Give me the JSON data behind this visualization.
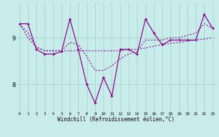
{
  "line1_x": [
    0,
    1,
    2,
    3,
    4,
    5,
    6,
    7,
    8,
    9,
    10,
    11,
    12,
    13,
    14,
    15,
    16,
    17,
    18,
    19,
    20,
    21,
    22,
    23
  ],
  "line1_y": [
    9.3,
    9.3,
    8.75,
    8.65,
    8.65,
    8.7,
    9.4,
    8.75,
    8.0,
    7.6,
    8.15,
    7.75,
    8.75,
    8.75,
    8.65,
    9.4,
    9.1,
    8.85,
    8.95,
    8.95,
    8.95,
    8.95,
    9.5,
    9.2
  ],
  "line2_x": [
    0,
    1,
    2,
    3,
    4,
    5,
    6,
    7,
    8,
    9,
    10,
    11,
    12,
    13,
    14,
    15,
    16,
    17,
    18,
    19,
    20,
    21,
    22,
    23
  ],
  "line2_y": [
    9.3,
    9.0,
    8.8,
    8.72,
    8.72,
    8.72,
    8.72,
    8.72,
    8.72,
    8.72,
    8.72,
    8.72,
    8.72,
    8.75,
    8.75,
    8.78,
    8.82,
    8.85,
    8.88,
    8.9,
    8.93,
    8.95,
    8.97,
    9.0
  ],
  "line3_x": [
    0,
    1,
    2,
    3,
    4,
    5,
    6,
    7,
    8,
    9,
    10,
    11,
    12,
    13,
    14,
    15,
    16,
    17,
    18,
    19,
    20,
    21,
    22,
    23
  ],
  "line3_y": [
    9.3,
    9.1,
    8.8,
    8.72,
    8.72,
    8.72,
    8.9,
    8.85,
    8.6,
    8.3,
    8.3,
    8.4,
    8.55,
    8.65,
    8.7,
    8.95,
    8.95,
    8.95,
    9.0,
    9.0,
    9.05,
    9.1,
    9.3,
    9.2
  ],
  "line_color": "#880088",
  "bg_color": "#c8ecea",
  "grid_color": "#9dcfcc",
  "xlabel": "Windchill (Refroidissement éolien,°C)",
  "yticks": [
    8,
    9
  ],
  "ylim": [
    7.4,
    9.75
  ],
  "xlim": [
    -0.5,
    23.5
  ],
  "xticks": [
    0,
    1,
    2,
    3,
    4,
    5,
    6,
    7,
    8,
    9,
    10,
    11,
    12,
    13,
    14,
    15,
    16,
    17,
    18,
    19,
    20,
    21,
    22,
    23
  ]
}
